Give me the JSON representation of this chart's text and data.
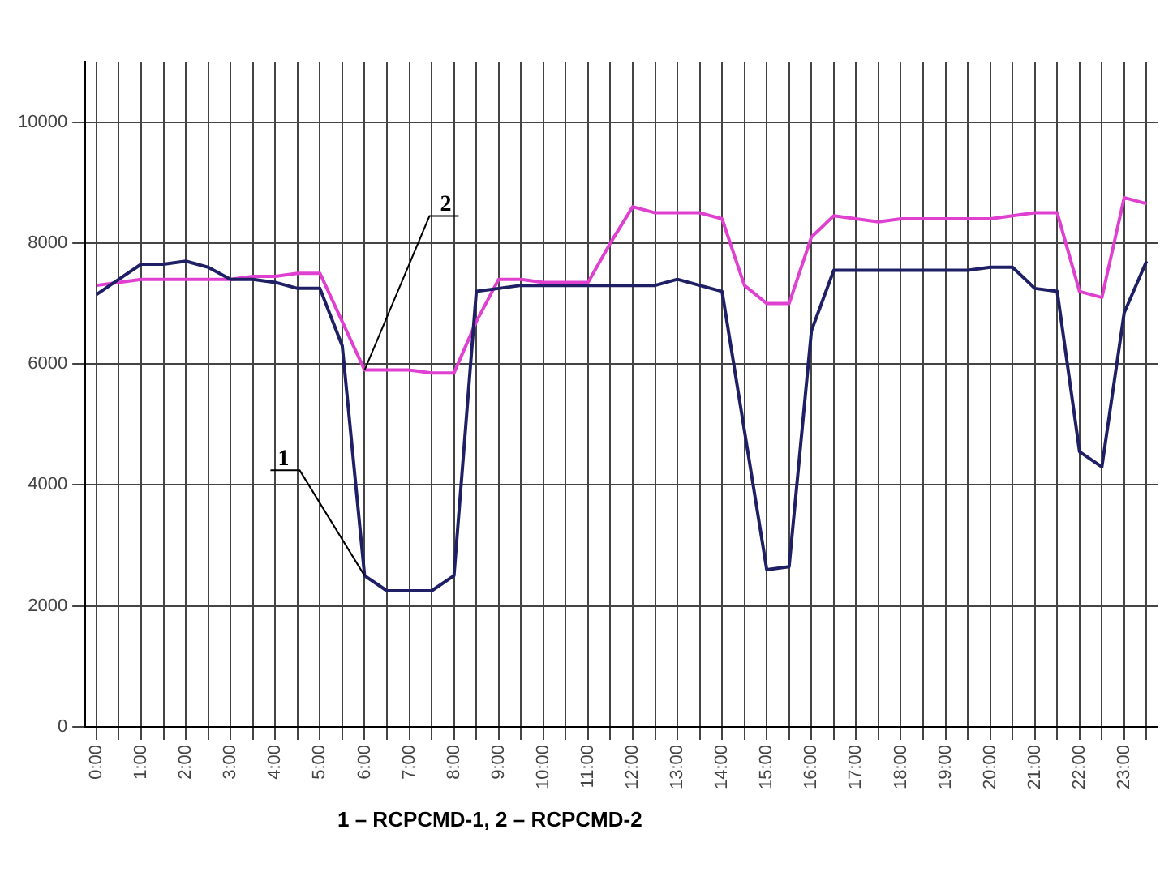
{
  "chart_data": {
    "type": "line",
    "categories": [
      "0:00",
      null,
      "1:00",
      null,
      "2:00",
      null,
      "3:00",
      null,
      "4:00",
      null,
      "5:00",
      null,
      "6:00",
      null,
      "7:00",
      null,
      "8:00",
      null,
      "9:00",
      null,
      "10:00",
      null,
      "11:00",
      null,
      "12:00",
      null,
      "13:00",
      null,
      "14:00",
      null,
      "15:00",
      null,
      "16:00",
      null,
      "17:00",
      null,
      "18:00",
      null,
      "19:00",
      null,
      "20:00",
      null,
      "21:00",
      null,
      "22:00",
      null,
      "23:00",
      null
    ],
    "series": [
      {
        "color": "#1f1f66",
        "values": [
          7150,
          7400,
          7650,
          7650,
          7700,
          7600,
          7400,
          7400,
          7350,
          7250,
          7250,
          6300,
          2500,
          2250,
          2250,
          2250,
          2500,
          7200,
          7250,
          7300,
          7300,
          7300,
          7300,
          7300,
          7300,
          7300,
          7400,
          7300,
          7200,
          4900,
          2600,
          2650,
          6550,
          7550,
          7550,
          7550,
          7550,
          7550,
          7550,
          7550,
          7600,
          7600,
          7250,
          7200,
          4550,
          4300,
          6850,
          7700
        ]
      },
      {
        "color": "#e040d0",
        "values": [
          7300,
          7350,
          7400,
          7400,
          7400,
          7400,
          7400,
          7450,
          7450,
          7500,
          7500,
          6700,
          5900,
          5900,
          5900,
          5850,
          5850,
          6700,
          7400,
          7400,
          7350,
          7350,
          7350,
          8000,
          8600,
          8500,
          8500,
          8500,
          8400,
          7300,
          7000,
          7000,
          8100,
          8450,
          8400,
          8350,
          8400,
          8400,
          8400,
          8400,
          8400,
          8450,
          8500,
          8500,
          7200,
          7100,
          8750,
          8650
        ]
      }
    ],
    "ylim": [
      0,
      11000
    ],
    "yticks": [
      0,
      2000,
      4000,
      6000,
      8000,
      10000
    ],
    "grid": true,
    "line_style": "solid",
    "marker": "none",
    "annotations": [
      {
        "text": "1",
        "x": "6:00",
        "y": 2500
      },
      {
        "text": "2",
        "x": "6:00",
        "y": 5900
      },
      "1 – RCPCMD-1, 2 – RCPCMD-2"
    ]
  }
}
